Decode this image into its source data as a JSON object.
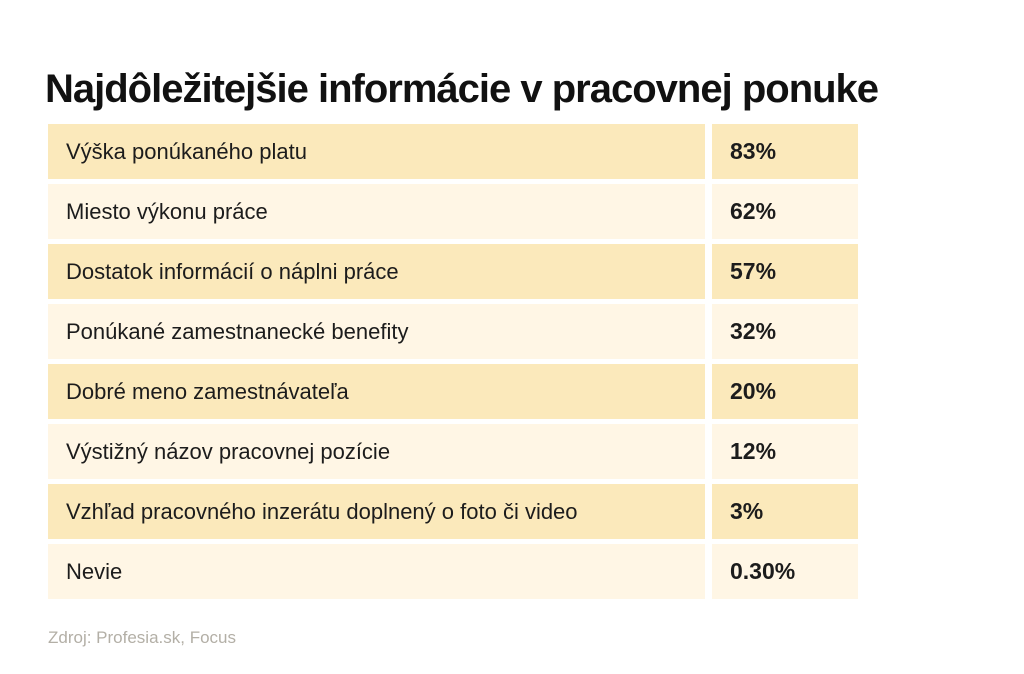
{
  "page": {
    "title": "Najdôležitejšie informácie v pracovnej ponuke",
    "source": "Zdroj: Profesia.sk, Focus"
  },
  "chart_data": {
    "type": "table",
    "title": "Najdôležitejšie informácie v pracovnej ponuke",
    "categories": [
      "Výška ponúkaného platu",
      "Miesto výkonu práce",
      "Dostatok informácií o náplni práce",
      "Ponúkané zamestnanecké benefity",
      "Dobré meno zamestnávateľa",
      "Výstižný názov pracovnej pozície",
      "Vzhľad pracovného inzerátu doplnený o foto či video",
      "Nevie"
    ],
    "values": [
      83,
      62,
      57,
      32,
      20,
      12,
      3,
      0.3
    ],
    "rows": [
      {
        "label": "Výška ponúkaného platu",
        "value": "83%"
      },
      {
        "label": "Miesto výkonu práce",
        "value": "62%"
      },
      {
        "label": "Dostatok informácií o náplni práce",
        "value": "57%"
      },
      {
        "label": "Ponúkané zamestnanecké benefity",
        "value": "32%"
      },
      {
        "label": "Dobré meno zamestnávateľa",
        "value": "20%"
      },
      {
        "label": "Výstižný názov pracovnej pozície",
        "value": "12%"
      },
      {
        "label": "Vzhľad pracovného inzerátu doplnený o foto či video",
        "value": "3%"
      },
      {
        "label": "Nevie",
        "value": "0.30%"
      }
    ],
    "source": "Zdroj: Profesia.sk, Focus",
    "legend": false,
    "grid": false
  },
  "colors": {
    "background": "#FFFFFF",
    "row_dark": "#FBE9BB",
    "row_light": "#FFF6E5",
    "text": "#1C1C1C",
    "title_text": "#111111",
    "source_text": "#B3AFA6"
  }
}
